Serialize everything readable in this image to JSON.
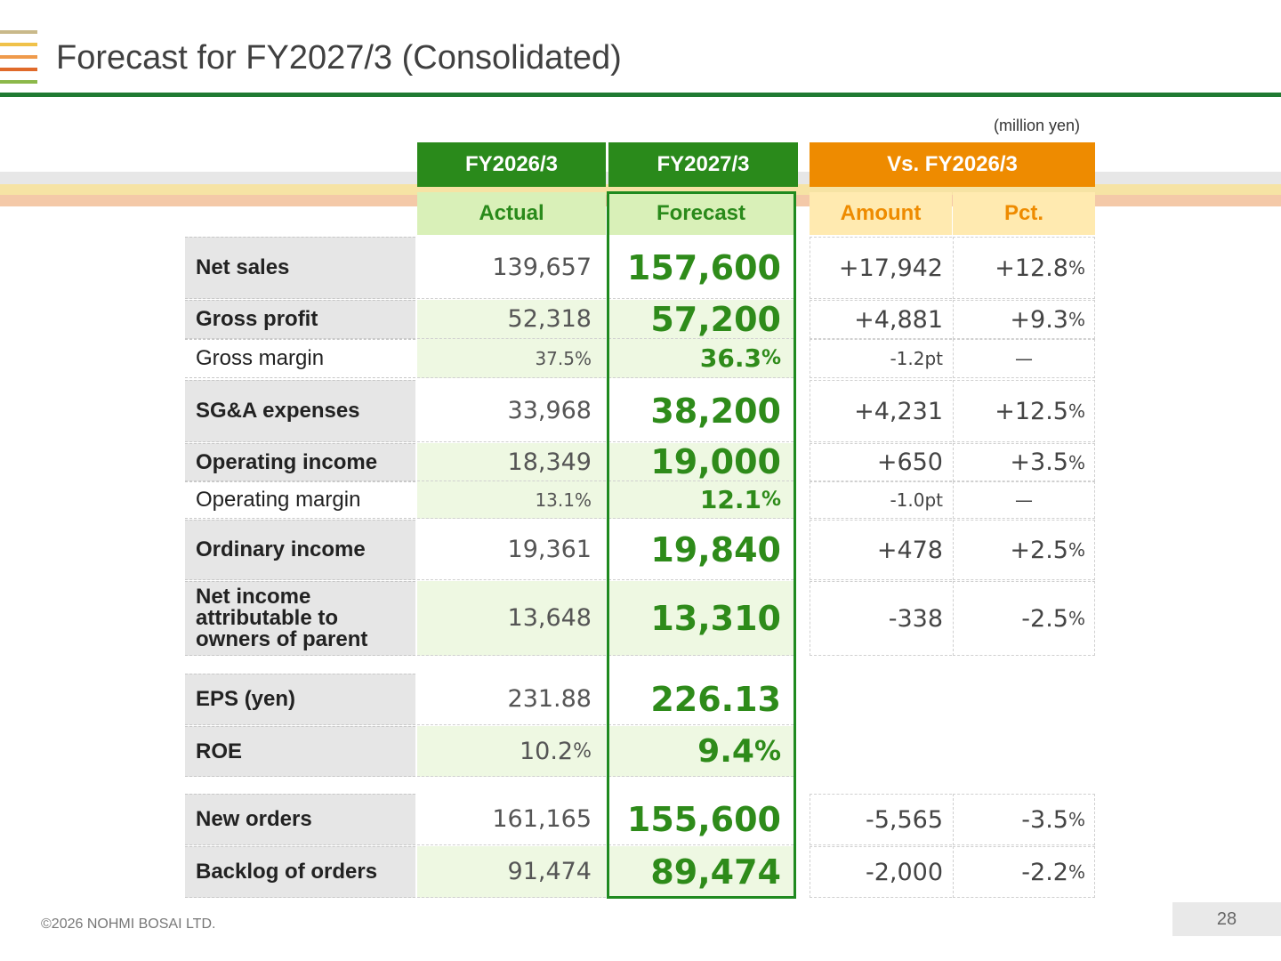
{
  "title": "Forecast for FY2027/3 (Consolidated)",
  "unit": "(million yen)",
  "colors": {
    "green": "#2a8a1b",
    "orange": "#ee8b00",
    "light_green": "#d9f0b8",
    "light_orange": "#ffeab0"
  },
  "headers": {
    "fy2026": "FY2026/3",
    "fy2027": "FY2027/3",
    "vs": "Vs. FY2026/3",
    "actual": "Actual",
    "forecast": "Forecast",
    "amount": "Amount",
    "pct": "Pct."
  },
  "rows": [
    {
      "label": "Net sales",
      "actual": "139,657",
      "forecast": "157,600",
      "amount": "+17,942",
      "pct": "+12.8",
      "pct_unit": "%"
    },
    {
      "label": "Gross profit",
      "actual": "52,318",
      "forecast": "57,200",
      "amount": "+4,881",
      "pct": "+9.3",
      "pct_unit": "%"
    },
    {
      "label": "Gross margin",
      "actual": "37.5%",
      "forecast": "36.3",
      "forecast_unit": "%",
      "amount": "-1.2pt",
      "pct": "—"
    },
    {
      "label": "SG&A expenses",
      "actual": "33,968",
      "forecast": "38,200",
      "amount": "+4,231",
      "pct": "+12.5",
      "pct_unit": "%"
    },
    {
      "label": "Operating income",
      "actual": "18,349",
      "forecast": "19,000",
      "amount": "+650",
      "pct": "+3.5",
      "pct_unit": "%"
    },
    {
      "label": "Operating margin",
      "actual": "13.1%",
      "forecast": "12.1",
      "forecast_unit": "%",
      "amount": "-1.0pt",
      "pct": "—"
    },
    {
      "label": "Ordinary income",
      "actual": "19,361",
      "forecast": "19,840",
      "amount": "+478",
      "pct": "+2.5",
      "pct_unit": "%"
    },
    {
      "label_lines": [
        "Net income",
        "attributable to",
        "owners of parent"
      ],
      "actual": "13,648",
      "forecast": "13,310",
      "amount": "-338",
      "pct": "-2.5",
      "pct_unit": "%"
    },
    {
      "label": "EPS (yen)",
      "actual": "231.88",
      "forecast": "226.13"
    },
    {
      "label": "ROE",
      "actual": "10.2",
      "actual_unit": "%",
      "forecast": "9.4",
      "forecast_unit": "%"
    },
    {
      "label": "New orders",
      "actual": "161,165",
      "forecast": "155,600",
      "amount": "-5,565",
      "pct": "-3.5",
      "pct_unit": "%"
    },
    {
      "label": "Backlog of orders",
      "actual": "91,474",
      "forecast": "89,474",
      "amount": "-2,000",
      "pct": "-2.2",
      "pct_unit": "%"
    }
  ],
  "footer": "©2026 NOHMI BOSAI LTD.",
  "page_number": "28"
}
